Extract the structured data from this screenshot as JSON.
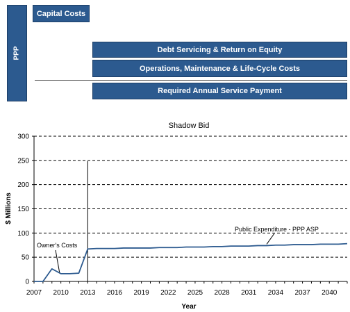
{
  "diagram": {
    "ppp_label": "PPP",
    "capital_costs": "Capital Costs",
    "debt_servicing": "Debt Servicing & Return on Equity",
    "operations": "Operations, Maintenance & Life-Cycle Costs",
    "rasp": "Required Annual Service Payment"
  },
  "colors": {
    "block_fill": "#2c5a8f",
    "line": "#2c5a8f"
  },
  "chart_data": {
    "type": "line",
    "title": "Shadow Bid",
    "xlabel": "Year",
    "ylabel": "$ Millions",
    "xlim": [
      2007,
      2042
    ],
    "ylim": [
      0,
      300
    ],
    "xticks": [
      2007,
      2010,
      2013,
      2016,
      2019,
      2022,
      2025,
      2028,
      2031,
      2034,
      2037,
      2040
    ],
    "yticks": [
      0,
      50,
      100,
      150,
      200,
      250,
      300
    ],
    "grid": "horizontal dashed",
    "x": [
      2007,
      2008,
      2009,
      2010,
      2011,
      2012,
      2013,
      2014,
      2015,
      2016,
      2017,
      2018,
      2019,
      2020,
      2021,
      2022,
      2023,
      2024,
      2025,
      2026,
      2027,
      2028,
      2029,
      2030,
      2031,
      2032,
      2033,
      2034,
      2035,
      2036,
      2037,
      2038,
      2039,
      2040,
      2041,
      2042
    ],
    "series": [
      {
        "values": [
          0,
          0,
          26,
          16,
          16,
          17,
          67,
          68,
          68,
          68,
          69,
          69,
          69,
          69,
          70,
          70,
          70,
          71,
          71,
          71,
          72,
          72,
          73,
          73,
          73,
          74,
          74,
          75,
          75,
          76,
          76,
          76,
          77,
          77,
          77,
          78
        ]
      }
    ],
    "annotations": [
      {
        "text": "Owner's Costs",
        "x": 2010,
        "y": 16
      },
      {
        "text": "Public Expenditure - PPP ASP",
        "x": 2033,
        "y": 74
      }
    ],
    "reference_line_year": 2013
  }
}
